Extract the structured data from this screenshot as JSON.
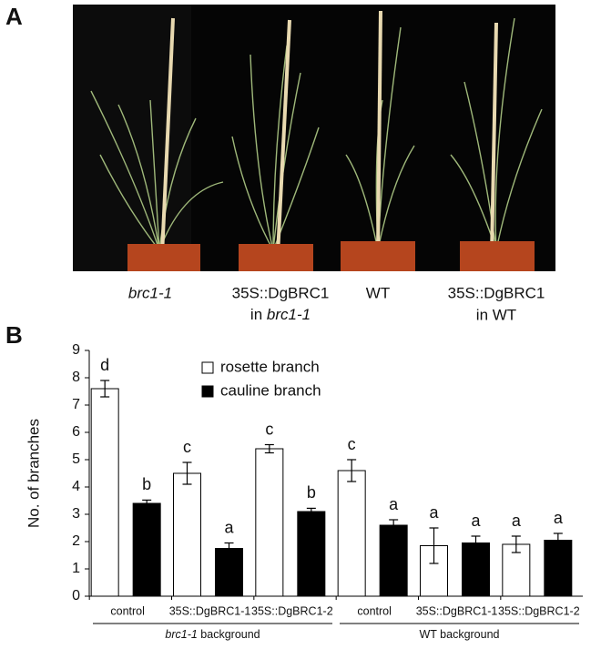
{
  "panels": {
    "a": "A",
    "b": "B"
  },
  "photo_captions": {
    "c1": "brc1-1",
    "c2": {
      "line1": "35S::DgBRC1",
      "prefix": "in",
      "name": "brc1-1"
    },
    "c3": "WT",
    "c4": {
      "line1": "35S::DgBRC1",
      "line2": "in WT"
    }
  },
  "chart_data": {
    "type": "bar",
    "ylabel": "No. of branches",
    "categories": [
      "control",
      "35S::DgBRC1-1",
      "35S::DgBRC1-2",
      "control",
      "35S::DgBRC1-1",
      "35S::DgBRC1-2"
    ],
    "groups": [
      {
        "label": "brc1-1",
        "suffix": "background",
        "start": 0,
        "end": 2
      },
      {
        "label": "WT background",
        "start": 3,
        "end": 5
      }
    ],
    "series": [
      {
        "name": "rosette branch",
        "color": "#ffffff",
        "values": [
          7.6,
          4.5,
          5.4,
          4.6,
          1.85,
          1.9
        ],
        "errors": [
          0.3,
          0.4,
          0.15,
          0.4,
          0.65,
          0.3
        ],
        "letters": [
          "d",
          "c",
          "c",
          "c",
          "a",
          "a"
        ]
      },
      {
        "name": "cauline branch",
        "color": "#000000",
        "values": [
          3.4,
          1.75,
          3.1,
          2.6,
          1.95,
          2.05
        ],
        "errors": [
          0.12,
          0.2,
          0.12,
          0.2,
          0.25,
          0.25
        ],
        "letters": [
          "b",
          "a",
          "b",
          "a",
          "a",
          "a"
        ]
      }
    ],
    "ylim": [
      0,
      9
    ],
    "yticks": [
      0,
      1,
      2,
      3,
      4,
      5,
      6,
      7,
      8,
      9
    ]
  }
}
